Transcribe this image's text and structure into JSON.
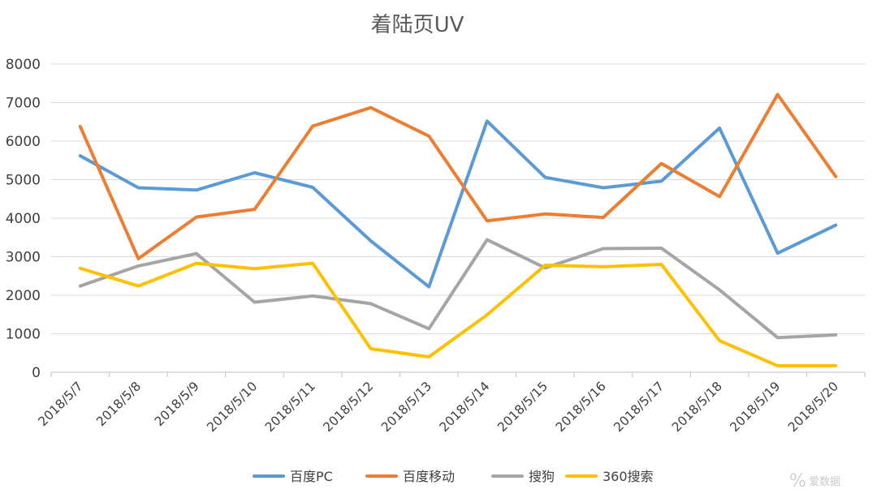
{
  "chart_data": {
    "type": "line",
    "title": "着陆页UV",
    "xlabel": "",
    "ylabel": "",
    "ylim": [
      0,
      8000
    ],
    "yticks": [
      0,
      1000,
      2000,
      3000,
      4000,
      5000,
      6000,
      7000,
      8000
    ],
    "grid": true,
    "legend_position": "bottom",
    "categories": [
      "2018/5/7",
      "2018/5/8",
      "2018/5/9",
      "2018/5/10",
      "2018/5/11",
      "2018/5/12",
      "2018/5/13",
      "2018/5/14",
      "2018/5/15",
      "2018/5/16",
      "2018/5/17",
      "2018/5/18",
      "2018/5/19",
      "2018/5/20"
    ],
    "series": [
      {
        "name": "百度PC",
        "color": "#5B9BD5",
        "values": [
          5620,
          4790,
          4730,
          5180,
          4800,
          3410,
          2220,
          6520,
          5060,
          4790,
          4960,
          6340,
          3090,
          3820
        ]
      },
      {
        "name": "百度移动",
        "color": "#ED7D31",
        "values": [
          6380,
          2950,
          4030,
          4230,
          6390,
          6870,
          6130,
          3930,
          4110,
          4020,
          5420,
          4560,
          7210,
          5080
        ]
      },
      {
        "name": "搜狗",
        "color": "#A5A5A5",
        "values": [
          2240,
          2760,
          3080,
          1820,
          1980,
          1780,
          1130,
          3440,
          2710,
          3210,
          3220,
          2140,
          900,
          970
        ]
      },
      {
        "name": "360搜索",
        "color": "#FFC000",
        "values": [
          2700,
          2240,
          2830,
          2690,
          2830,
          610,
          400,
          1490,
          2780,
          2740,
          2800,
          820,
          170,
          170
        ]
      }
    ]
  },
  "watermark": {
    "text": "爱数据",
    "icon": "percent-logo-icon"
  }
}
